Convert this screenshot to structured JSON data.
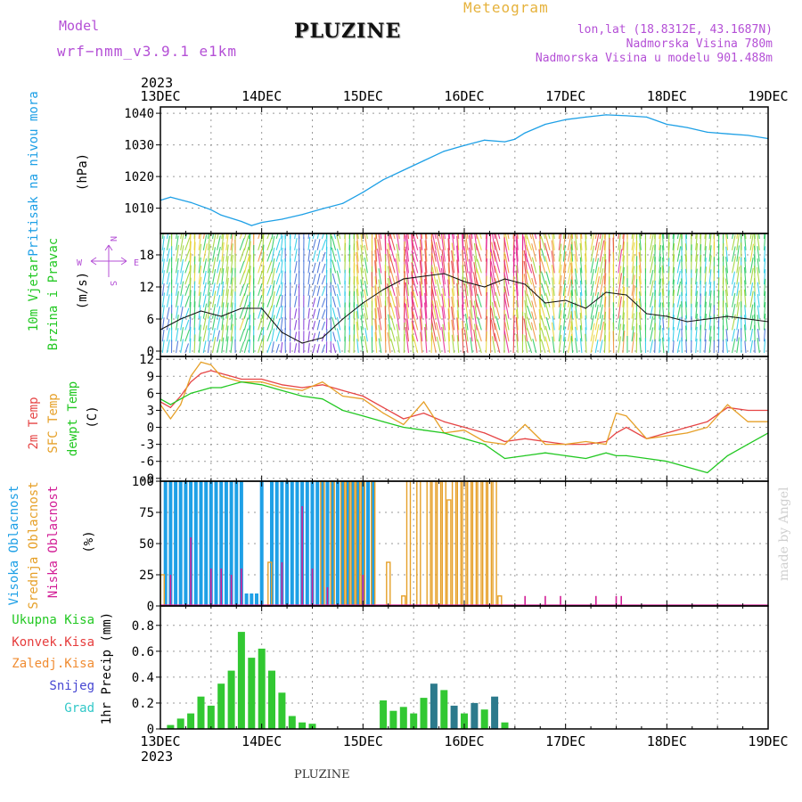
{
  "header": {
    "model_label": "Model",
    "model_name": "wrf−nmm_v3.9.1  e1km",
    "title": "PLUZINE",
    "meteogram_label": "Meteogram",
    "lonlat": "lon,lat (18.8312E, 43.1687N)",
    "altitude": "Nadmorska Visina 780m",
    "model_altitude": "Nadmorska Visina u modelu 901.488m"
  },
  "footer": {
    "station": "PLUZINE",
    "credit": "made by Angel"
  },
  "time_axis": {
    "year": "2023",
    "ticks": [
      "13DEC",
      "14DEC",
      "15DEC",
      "16DEC",
      "17DEC",
      "18DEC",
      "19DEC"
    ]
  },
  "colors": {
    "pressure": "#1ea0e6",
    "temp2m": "#e64646",
    "sfc_temp": "#e6a028",
    "dewpoint": "#22c822",
    "high_cloud": "#1ea0e6",
    "mid_cloud": "#e6a028",
    "low_cloud": "#d21e96",
    "total_precip": "#32c832",
    "conv_precip": "#e63c3c",
    "frozen_precip": "#f08c32",
    "snow": "#4646d2",
    "hail": "#32c8c8",
    "wind_speed_line": "#111111",
    "wind_legend": "#b44fd6"
  },
  "panels": {
    "pressure": {
      "label": "Pritisak na nivou mora",
      "unit": "(hPa)"
    },
    "wind": {
      "label1": "10m Vjetar",
      "label2": "Brzina i Pravac",
      "unit": "(m/s)",
      "compass": {
        "n": "N",
        "s": "S",
        "e": "E",
        "w": "W"
      }
    },
    "temp": {
      "label1": "2m Temp",
      "label2": "SFC Temp",
      "label3": "dewpt Temp",
      "unit": "(C)"
    },
    "cloud": {
      "label1": "Visoka Oblacnost",
      "label2": "Srednja Oblacnost",
      "label3": "Niska Oblacnost",
      "unit": "(%)"
    },
    "precip": {
      "legend": [
        "Ukupna Kisa",
        "Konvek.Kisa",
        "Zaledj.Kisa",
        "Snijeg",
        "Grad"
      ],
      "axis": "1hr Precip (mm)"
    }
  },
  "chart_data": [
    {
      "type": "line",
      "name": "pressure",
      "ylabel": "(hPa)",
      "ylim": [
        1002,
        1042
      ],
      "yticks": [
        1010,
        1020,
        1030,
        1040
      ],
      "grid": true,
      "x": [
        0,
        0.1,
        0.3,
        0.5,
        0.6,
        0.8,
        0.9,
        1.0,
        1.2,
        1.4,
        1.6,
        1.8,
        2.0,
        2.2,
        2.4,
        2.6,
        2.8,
        3.0,
        3.2,
        3.4,
        3.5,
        3.6,
        3.8,
        4.0,
        4.2,
        4.4,
        4.6,
        4.8,
        5.0,
        5.2,
        5.4,
        5.6,
        5.8,
        6.0
      ],
      "series": [
        {
          "values": [
            1012.5,
            1013.5,
            1011.8,
            1009.5,
            1007.8,
            1005.8,
            1004.5,
            1005.5,
            1006.5,
            1008.0,
            1009.8,
            1011.5,
            1015.0,
            1019.0,
            1022.0,
            1025.0,
            1028.0,
            1029.8,
            1031.5,
            1031.0,
            1031.8,
            1033.8,
            1036.5,
            1038.0,
            1038.8,
            1039.5,
            1039.2,
            1038.8,
            1036.5,
            1035.5,
            1034.0,
            1033.5,
            1033.0,
            1032.0
          ]
        }
      ]
    },
    {
      "type": "line",
      "name": "wind",
      "ylabel": "(m/s)",
      "ylim": [
        -1,
        22
      ],
      "yticks": [
        0,
        6,
        12,
        18
      ],
      "grid": true,
      "x": [
        0,
        0.2,
        0.4,
        0.6,
        0.8,
        1.0,
        1.2,
        1.4,
        1.6,
        1.8,
        2.0,
        2.2,
        2.4,
        2.6,
        2.8,
        3.0,
        3.2,
        3.4,
        3.6,
        3.8,
        4.0,
        4.2,
        4.4,
        4.6,
        4.8,
        5.0,
        5.2,
        5.4,
        5.6,
        5.8,
        6.0
      ],
      "series": [
        {
          "values": [
            4.0,
            6.0,
            7.5,
            6.5,
            8.0,
            8.0,
            3.5,
            1.5,
            2.5,
            6.0,
            9.0,
            11.5,
            13.5,
            14.0,
            14.5,
            13.0,
            12.0,
            13.5,
            12.5,
            9.0,
            9.5,
            8.0,
            11.0,
            10.5,
            7.0,
            6.5,
            5.5,
            6.0,
            6.5,
            6.0,
            5.5
          ]
        }
      ]
    },
    {
      "type": "line",
      "name": "temperature",
      "ylabel": "(C)",
      "ylim": [
        -9.5,
        12.5
      ],
      "yticks": [
        -9,
        -6,
        -3,
        0,
        3,
        6,
        9,
        12
      ],
      "grid": true,
      "x": [
        0,
        0.1,
        0.2,
        0.3,
        0.4,
        0.5,
        0.6,
        0.8,
        1.0,
        1.2,
        1.4,
        1.6,
        1.8,
        2.0,
        2.2,
        2.4,
        2.6,
        2.8,
        3.0,
        3.2,
        3.4,
        3.6,
        3.8,
        4.0,
        4.2,
        4.4,
        4.5,
        4.6,
        4.8,
        5.0,
        5.2,
        5.4,
        5.6,
        5.8,
        6.0
      ],
      "series": [
        {
          "name": "2m Temp",
          "values": [
            4.5,
            3.5,
            5.5,
            8.0,
            9.5,
            10.0,
            9.5,
            8.5,
            8.5,
            7.5,
            7.0,
            7.5,
            6.5,
            5.5,
            3.5,
            1.5,
            2.5,
            1.0,
            0.0,
            -1.0,
            -2.5,
            -2.0,
            -2.5,
            -3.0,
            -3.0,
            -2.5,
            -1.0,
            0.0,
            -2.0,
            -1.0,
            0.0,
            1.0,
            3.5,
            3.0,
            3.0
          ]
        },
        {
          "name": "SFC Temp",
          "values": [
            4.0,
            1.5,
            4.0,
            9.0,
            11.5,
            11.0,
            9.0,
            8.0,
            8.0,
            7.0,
            6.5,
            8.0,
            5.5,
            5.0,
            2.5,
            0.5,
            4.5,
            -1.0,
            -0.5,
            -2.5,
            -3.0,
            0.5,
            -3.0,
            -3.0,
            -2.5,
            -3.0,
            2.5,
            2.0,
            -2.0,
            -1.5,
            -1.0,
            0.0,
            4.0,
            1.0,
            1.0
          ]
        },
        {
          "name": "dewpt Temp",
          "values": [
            5.0,
            4.0,
            5.0,
            6.0,
            6.5,
            7.0,
            7.0,
            8.0,
            7.5,
            6.5,
            5.5,
            5.0,
            3.0,
            2.0,
            1.0,
            0.0,
            -0.5,
            -1.0,
            -2.0,
            -3.0,
            -5.5,
            -5.0,
            -4.5,
            -5.0,
            -5.5,
            -4.5,
            -5.0,
            -5.0,
            -5.5,
            -6.0,
            -7.0,
            -8.0,
            -5.0,
            -3.0,
            -1.0
          ]
        }
      ]
    },
    {
      "type": "bar",
      "name": "cloud",
      "ylabel": "(%)",
      "ylim": [
        0,
        100
      ],
      "yticks": [
        0,
        25,
        50,
        75,
        100
      ],
      "grid": true,
      "high_cloud_x": [
        0.05,
        0.1,
        0.15,
        0.2,
        0.25,
        0.3,
        0.35,
        0.4,
        0.45,
        0.5,
        0.55,
        0.6,
        0.65,
        0.7,
        0.75,
        0.8,
        0.85,
        0.9,
        0.95,
        1.0,
        1.1,
        1.15,
        1.2,
        1.25,
        1.3,
        1.35,
        1.4,
        1.45,
        1.5,
        1.55,
        1.6,
        1.65,
        1.7,
        1.75,
        1.8,
        1.85,
        1.9,
        1.95,
        2.0,
        2.05,
        2.1
      ],
      "high_cloud_values": [
        100,
        100,
        100,
        100,
        100,
        100,
        100,
        100,
        100,
        100,
        100,
        100,
        100,
        100,
        100,
        100,
        10,
        10,
        10,
        100,
        100,
        100,
        100,
        100,
        100,
        100,
        100,
        100,
        100,
        100,
        100,
        100,
        100,
        100,
        100,
        100,
        100,
        100,
        100,
        100,
        100
      ],
      "mid_cloud_x": [
        0.02,
        1.08,
        1.6,
        1.7,
        1.8,
        1.85,
        1.9,
        1.95,
        2.0,
        2.1,
        2.25,
        2.4,
        2.45,
        2.55,
        2.65,
        2.7,
        2.75,
        2.8,
        2.85,
        2.9,
        2.95,
        3.0,
        3.05,
        3.1,
        3.15,
        3.2,
        3.25,
        3.3,
        3.35
      ],
      "mid_cloud_values": [
        25,
        35,
        100,
        100,
        100,
        100,
        100,
        100,
        100,
        100,
        35,
        8,
        100,
        100,
        100,
        100,
        100,
        100,
        85,
        100,
        100,
        100,
        100,
        100,
        100,
        100,
        100,
        100,
        8
      ],
      "low_cloud_x": [
        0.1,
        0.3,
        0.5,
        0.6,
        0.7,
        0.8,
        1.2,
        1.4,
        1.5,
        1.65,
        2.0,
        3.6,
        3.8,
        3.95,
        4.3,
        4.5,
        4.55
      ],
      "low_cloud_values": [
        25,
        55,
        30,
        30,
        25,
        30,
        35,
        80,
        30,
        15,
        25,
        8,
        8,
        8,
        8,
        8,
        8
      ]
    },
    {
      "type": "bar",
      "name": "precipitation",
      "ylabel": "1hr Precip (mm)",
      "ylim": [
        0,
        0.95
      ],
      "yticks": [
        0,
        0.2,
        0.4,
        0.6,
        0.8
      ],
      "grid": true,
      "x": [
        0.1,
        0.2,
        0.3,
        0.4,
        0.5,
        0.6,
        0.7,
        0.8,
        0.9,
        1.0,
        1.1,
        1.2,
        1.3,
        1.4,
        1.5,
        2.2,
        2.3,
        2.4,
        2.5,
        2.6,
        2.7,
        2.8,
        2.9,
        3.0,
        3.1,
        3.2,
        3.3,
        3.4
      ],
      "series": [
        {
          "name": "Ukupna Kisa",
          "values": [
            0.03,
            0.08,
            0.12,
            0.25,
            0.18,
            0.35,
            0.45,
            0.75,
            0.55,
            0.62,
            0.45,
            0.28,
            0.1,
            0.05,
            0.04,
            0.22,
            0.14,
            0.17,
            0.12,
            0.24,
            0.35,
            0.3,
            0.18,
            0.12,
            0.2,
            0.15,
            0.25,
            0.05
          ]
        }
      ]
    }
  ]
}
